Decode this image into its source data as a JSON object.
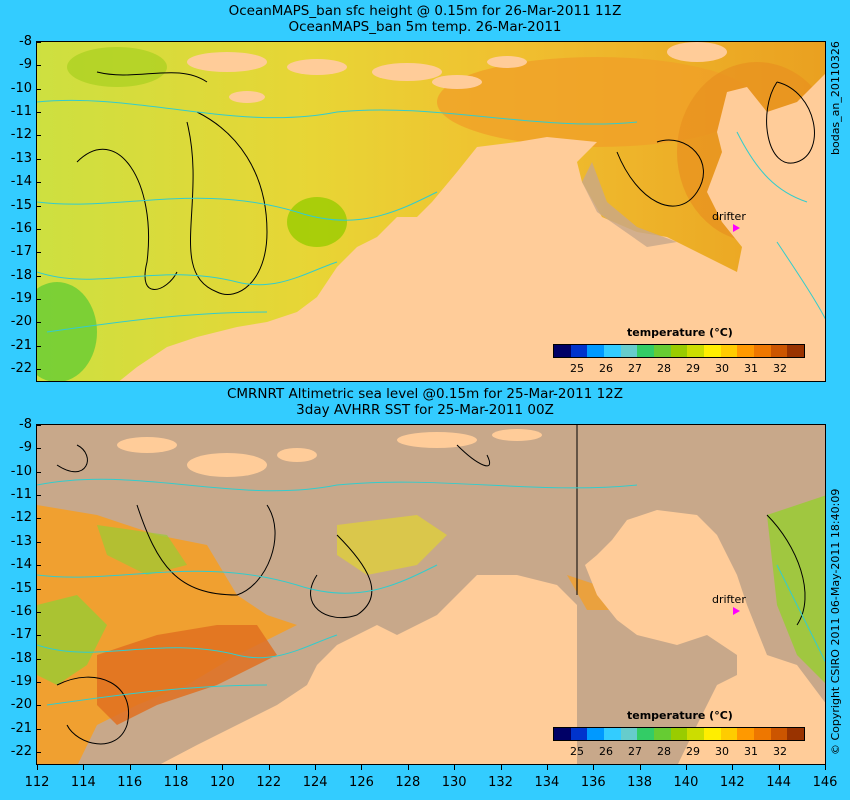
{
  "top_panel": {
    "title_line1": "OceanMAPS_ban sfc height @ 0.15m for 26-Mar-2011 11Z",
    "title_line2": "OceanMAPS_ban 5m temp. 26-Mar-2011",
    "side_label": "bodas_an_20110326",
    "drifter_label": "drifter",
    "legend_title": "temperature (°C)"
  },
  "bottom_panel": {
    "title_line1": "CMRNRT Altimetric sea level  @0.15m  for 25-Mar-2011 12Z",
    "title_line2": "3day AVHRR SST for 25-Mar-2011 00Z",
    "side_label": "© Copyright CSIRO 2011   06-May-2011 18:40:09",
    "drifter_label": "drifter",
    "legend_title": "temperature (°C)"
  },
  "axes": {
    "y_labels": [
      "-8",
      "-9",
      "-10",
      "-11",
      "-12",
      "-13",
      "-14",
      "-15",
      "-16",
      "-17",
      "-18",
      "-19",
      "-20",
      "-21",
      "-22"
    ],
    "x_labels": [
      "112",
      "114",
      "116",
      "118",
      "120",
      "122",
      "124",
      "126",
      "128",
      "130",
      "132",
      "134",
      "136",
      "138",
      "140",
      "142",
      "144",
      "146"
    ]
  },
  "colorbar": {
    "labels": [
      "25",
      "26",
      "27",
      "28",
      "29",
      "30",
      "31",
      "32"
    ],
    "colors": [
      "#000066",
      "#0033cc",
      "#0099ff",
      "#33ccff",
      "#66cccc",
      "#33cc66",
      "#66cc33",
      "#99cc00",
      "#ccdd00",
      "#ffee00",
      "#ffcc00",
      "#ff9900",
      "#ee7700",
      "#cc5500",
      "#993300"
    ]
  },
  "colors": {
    "background": "#33ccff",
    "land": "#ffcc99",
    "masked_land": "#c8a88a",
    "drifter": "#ff00ff"
  }
}
